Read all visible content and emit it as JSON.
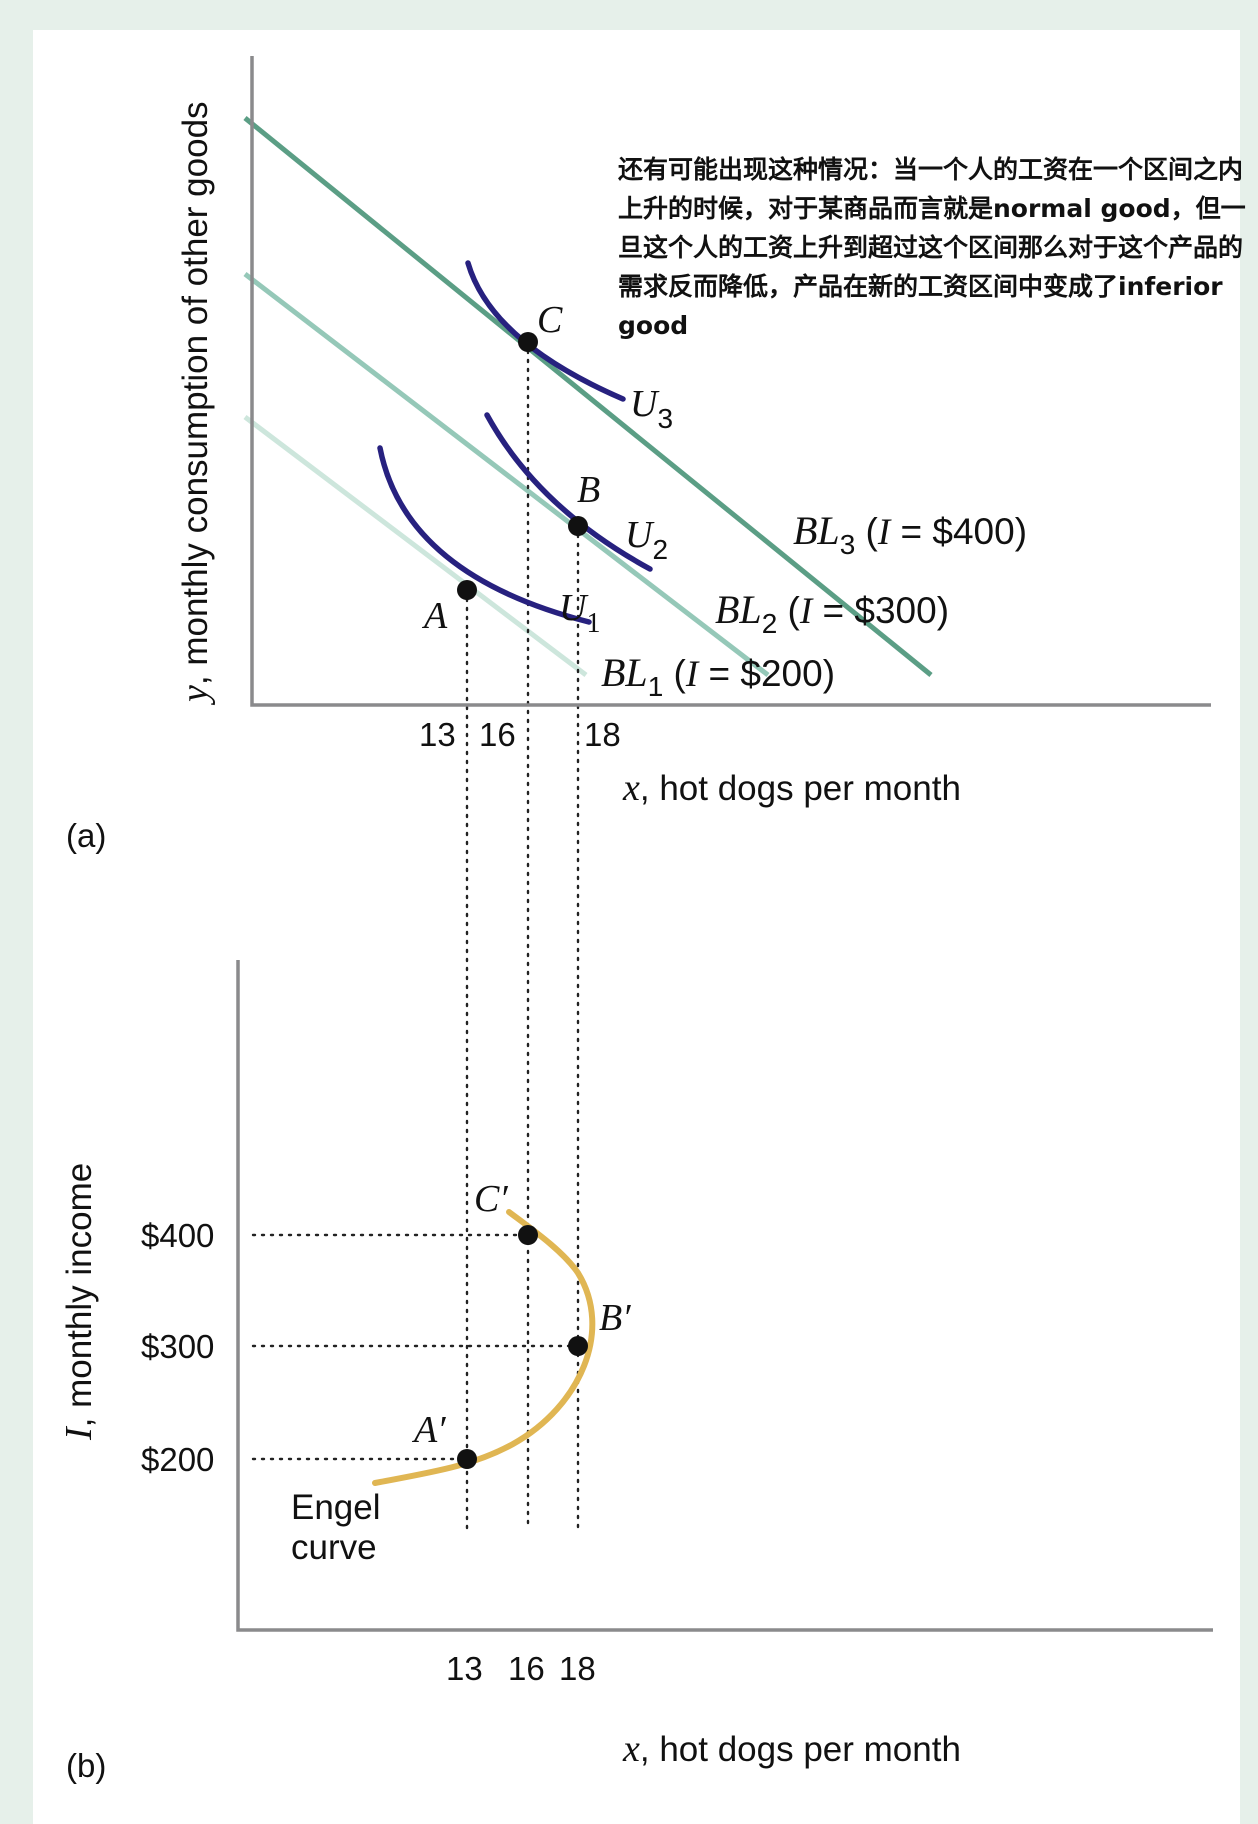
{
  "annotation": "还有可能出现这种情况：当一个人的工资在一个区间之内上升的时候，对于某商品而言就是normal good，但一旦这个人的工资上升到超过这个区间那么对于这个产品的需求反而降低，产品在新的工资区间中变成了inferior good",
  "chart_data": [
    {
      "panel": "(a)",
      "type": "line",
      "xlabel_var": "x",
      "xlabel": ", hot dogs per month",
      "ylabel_var": "y",
      "ylabel": ", monthly consumption of other goods",
      "x_ticks": [
        "13",
        "16",
        "18"
      ],
      "budget_lines": [
        {
          "name": "BL",
          "sub": "1",
          "income_var": "I",
          "income": "= $200",
          "color": "#cde6dc"
        },
        {
          "name": "BL",
          "sub": "2",
          "income_var": "I",
          "income": "= $300",
          "color": "#95c8b8"
        },
        {
          "name": "BL",
          "sub": "3",
          "income_var": "I",
          "income": "= $400",
          "color": "#5b9e85"
        }
      ],
      "indifference_curves": [
        {
          "name": "U",
          "sub": "1",
          "color": "#27217f"
        },
        {
          "name": "U",
          "sub": "2",
          "color": "#27217f"
        },
        {
          "name": "U",
          "sub": "3",
          "color": "#27217f"
        }
      ],
      "points": [
        {
          "label": "A",
          "x": 13
        },
        {
          "label": "B",
          "x": 18
        },
        {
          "label": "C",
          "x": 16
        }
      ]
    },
    {
      "panel": "(b)",
      "type": "line",
      "xlabel_var": "x",
      "xlabel": ", hot dogs per month",
      "ylabel_var": "I",
      "ylabel": ", monthly income",
      "x_ticks": [
        "13",
        "16",
        "18"
      ],
      "y_ticks": [
        "$200",
        "$300",
        "$400"
      ],
      "curve_label": [
        "Engel",
        "curve"
      ],
      "curve_color": "#e0b653",
      "points": [
        {
          "label": "A′",
          "x": 13,
          "y": 200
        },
        {
          "label": "B′",
          "x": 18,
          "y": 300
        },
        {
          "label": "C′",
          "x": 16,
          "y": 400
        }
      ]
    }
  ]
}
